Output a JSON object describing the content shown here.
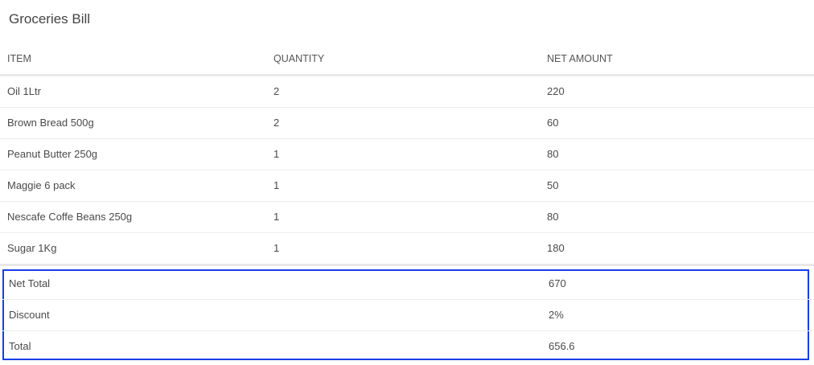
{
  "title": "Groceries Bill",
  "columns": [
    "ITEM",
    "QUANTITY",
    "NET AMOUNT"
  ],
  "items": [
    {
      "item": "Oil 1Ltr",
      "quantity": "2",
      "net_amount": "220"
    },
    {
      "item": "Brown Bread 500g",
      "quantity": "2",
      "net_amount": "60"
    },
    {
      "item": "Peanut Butter 250g",
      "quantity": "1",
      "net_amount": "80"
    },
    {
      "item": "Maggie 6 pack",
      "quantity": "1",
      "net_amount": "50"
    },
    {
      "item": "Nescafe Coffe Beans 250g",
      "quantity": "1",
      "net_amount": "80"
    },
    {
      "item": "Sugar 1Kg",
      "quantity": "1",
      "net_amount": "180"
    }
  ],
  "summary": [
    {
      "label": "Net Total",
      "value": "670"
    },
    {
      "label": "Discount",
      "value": "2%"
    },
    {
      "label": "Total",
      "value": "656.6"
    }
  ],
  "colors": {
    "highlight_border": "#1a3ee8"
  }
}
